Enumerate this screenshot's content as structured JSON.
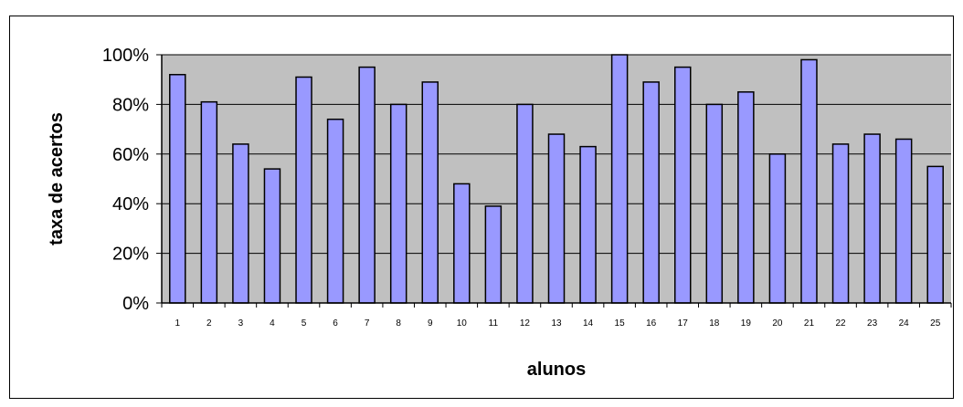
{
  "chart_data": {
    "type": "bar",
    "title": "",
    "xlabel": "alunos",
    "ylabel": "taxa de acertos",
    "categories": [
      "1",
      "2",
      "3",
      "4",
      "5",
      "6",
      "7",
      "8",
      "9",
      "10",
      "11",
      "12",
      "13",
      "14",
      "15",
      "16",
      "17",
      "18",
      "19",
      "20",
      "21",
      "22",
      "23",
      "24",
      "25"
    ],
    "values": [
      92,
      81,
      64,
      54,
      91,
      74,
      95,
      80,
      89,
      48,
      39,
      80,
      68,
      63,
      100,
      89,
      95,
      80,
      85,
      60,
      98,
      64,
      68,
      66,
      55
    ],
    "y_ticks": [
      "0%",
      "20%",
      "40%",
      "60%",
      "80%",
      "100%"
    ],
    "ylim": [
      0,
      100
    ],
    "grid": true,
    "legend": "none",
    "colors": {
      "bar_fill": "#9999ff",
      "bar_stroke": "#000000",
      "plot_background": "#c0c0c0",
      "gridline": "#000000"
    }
  }
}
